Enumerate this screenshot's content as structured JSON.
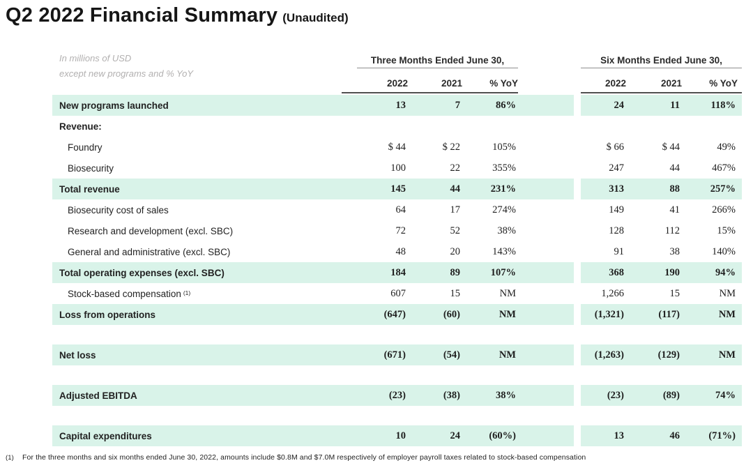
{
  "title": "Q2 2022 Financial Summary",
  "title_suffix": "(Unaudited)",
  "note_line1": "In millions of USD",
  "note_line2": "except new programs and % YoY",
  "colors": {
    "highlight": "#d9f3e9",
    "group_rule": "#8e8e8e",
    "year_rule": "#4f4f4f"
  },
  "table": {
    "groups": [
      {
        "label": "Three Months Ended June 30,"
      },
      {
        "label": "Six Months Ended June 30,"
      }
    ],
    "year_headers": [
      "2022",
      "2021",
      "% YoY",
      "2022",
      "2021",
      "% YoY"
    ],
    "rows": [
      {
        "type": "highlight",
        "label": "New programs launched",
        "values": [
          "13",
          "7",
          "86%",
          "24",
          "11",
          "118%"
        ]
      },
      {
        "type": "section",
        "label": "Revenue:",
        "values": [
          "",
          "",
          "",
          "",
          "",
          ""
        ]
      },
      {
        "type": "item",
        "label": "Foundry",
        "values": [
          "$ 44",
          "$ 22",
          "105%",
          "$ 66",
          "$ 44",
          "49%"
        ]
      },
      {
        "type": "item",
        "label": "Biosecurity",
        "values": [
          "100",
          "22",
          "355%",
          "247",
          "44",
          "467%"
        ]
      },
      {
        "type": "highlight",
        "label": "Total revenue",
        "values": [
          "145",
          "44",
          "231%",
          "313",
          "88",
          "257%"
        ]
      },
      {
        "type": "item",
        "label": "Biosecurity cost of sales",
        "values": [
          "64",
          "17",
          "274%",
          "149",
          "41",
          "266%"
        ]
      },
      {
        "type": "item",
        "label": "Research and development (excl. SBC)",
        "values": [
          "72",
          "52",
          "38%",
          "128",
          "112",
          "15%"
        ]
      },
      {
        "type": "item",
        "label": "General and administrative (excl. SBC)",
        "values": [
          "48",
          "20",
          "143%",
          "91",
          "38",
          "140%"
        ]
      },
      {
        "type": "highlight",
        "label": "Total operating expenses (excl. SBC)",
        "values": [
          "184",
          "89",
          "107%",
          "368",
          "190",
          "94%"
        ]
      },
      {
        "type": "item",
        "label": "Stock-based compensation",
        "sup": "(1)",
        "values": [
          "607",
          "15",
          "NM",
          "1,266",
          "15",
          "NM"
        ]
      },
      {
        "type": "highlight",
        "label": "Loss from operations",
        "values": [
          "(647)",
          "(60)",
          "NM",
          "(1,321)",
          "(117)",
          "NM"
        ]
      },
      {
        "type": "spacer"
      },
      {
        "type": "highlight",
        "label": "Net loss",
        "values": [
          "(671)",
          "(54)",
          "NM",
          "(1,263)",
          "(129)",
          "NM"
        ]
      },
      {
        "type": "spacer"
      },
      {
        "type": "highlight",
        "label": "Adjusted EBITDA",
        "values": [
          "(23)",
          "(38)",
          "38%",
          "(23)",
          "(89)",
          "74%"
        ]
      },
      {
        "type": "spacer"
      },
      {
        "type": "highlight",
        "label": "Capital expenditures",
        "values": [
          "10",
          "24",
          "(60%)",
          "13",
          "46",
          "(71%)"
        ]
      }
    ]
  },
  "footnote": {
    "marker": "(1)",
    "text": "For the three months and six months ended June 30, 2022, amounts include $0.8M and $7.0M respectively of employer payroll taxes related to stock-based compensation"
  }
}
